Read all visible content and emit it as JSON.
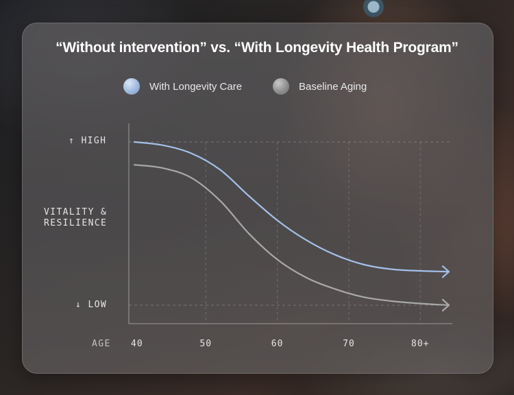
{
  "chart_data": {
    "type": "line",
    "title": "“Without intervention” vs. “With Longevity Health Program”",
    "xlabel": "AGE",
    "ylabel": "VITALITY & RESILIENCE",
    "ylabel_lines": [
      "VITALITY &",
      "RESILIENCE"
    ],
    "y_high_label": "↑ HIGH",
    "y_low_label": "↓ LOW",
    "xlim": [
      40,
      84
    ],
    "ylim": [
      0,
      100
    ],
    "grid": true,
    "legend_position": "top-center",
    "x_ticks": [
      {
        "value": 40,
        "label": "40"
      },
      {
        "value": 50,
        "label": "50"
      },
      {
        "value": 60,
        "label": "60"
      },
      {
        "value": 70,
        "label": "70"
      },
      {
        "value": 80,
        "label": "80+"
      }
    ],
    "series": [
      {
        "name": "With Longevity Care",
        "color": "#a4c0ea",
        "x": [
          40,
          44,
          48,
          52,
          56,
          60,
          64,
          68,
          72,
          76,
          80,
          84
        ],
        "y": [
          100,
          98,
          93,
          83,
          67,
          52,
          40,
          31,
          25,
          22,
          21,
          20.5
        ]
      },
      {
        "name": "Baseline Aging",
        "color": "#a9a9a9",
        "x": [
          40,
          44,
          48,
          52,
          56,
          60,
          64,
          68,
          72,
          76,
          80,
          84
        ],
        "y": [
          86,
          84,
          78,
          64,
          44,
          28,
          17,
          10,
          5,
          2.5,
          1,
          0
        ]
      }
    ]
  }
}
